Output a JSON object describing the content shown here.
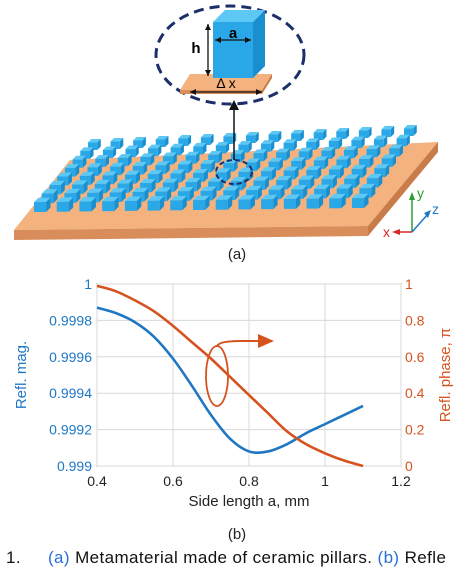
{
  "figure_a": {
    "labels": {
      "side": "a",
      "height": "h",
      "spacing": "Δ x",
      "axis_x": "x",
      "axis_y": "y",
      "axis_z": "z"
    },
    "caption_label": "(a)",
    "colors": {
      "pillar": "#2aa7e6",
      "pillar_top": "#5ec8f5",
      "pillar_side": "#1a8fd0",
      "substrate": "#f4b27e",
      "substrate_dark": "#d98d5a",
      "circle": "#1c2f6b"
    }
  },
  "figure_b": {
    "caption_label": "(b)",
    "annotation": "arrow from magnitude curve to right axis"
  },
  "chart_data": {
    "type": "line",
    "title": "",
    "xlabel": "Side length a, mm",
    "ylabel_left": "Refl. mag.",
    "ylabel_right": "Refl. phase, π",
    "xlim": [
      0.4,
      1.2
    ],
    "ylim_left": [
      0.999,
      1.0
    ],
    "ylim_right": [
      0,
      1
    ],
    "x_ticks": [
      "0.4",
      "0.6",
      "0.8",
      "1",
      "1.2"
    ],
    "y_ticks_left": [
      "0.999",
      "0.9992",
      "0.9994",
      "0.9996",
      "0.9998",
      "1"
    ],
    "y_ticks_right": [
      "0",
      "0.2",
      "0.4",
      "0.6",
      "0.8",
      "1"
    ],
    "grid": true,
    "series": [
      {
        "axis": "left",
        "color": "#1f77c4",
        "x": [
          0.4,
          0.45,
          0.5,
          0.55,
          0.6,
          0.65,
          0.7,
          0.75,
          0.8,
          0.85,
          0.9,
          0.95,
          1.0,
          1.05,
          1.1
        ],
        "y": [
          0.99987,
          0.99984,
          0.99979,
          0.99971,
          0.99959,
          0.99944,
          0.99928,
          0.99915,
          0.99908,
          0.99908,
          0.99912,
          0.99918,
          0.99923,
          0.99928,
          0.99933
        ]
      },
      {
        "axis": "right",
        "color": "#d6531f",
        "x": [
          0.4,
          0.45,
          0.5,
          0.55,
          0.6,
          0.65,
          0.7,
          0.75,
          0.8,
          0.85,
          0.9,
          0.95,
          1.0,
          1.05,
          1.1
        ],
        "y": [
          0.99,
          0.96,
          0.91,
          0.85,
          0.77,
          0.68,
          0.59,
          0.49,
          0.39,
          0.29,
          0.19,
          0.12,
          0.07,
          0.03,
          0.0
        ]
      }
    ]
  },
  "caption": {
    "number": "1.",
    "part_a": "(a)",
    "text_a": " Metamaterial made of ceramic pillars. ",
    "part_b": "(b)",
    "text_b": " Refle"
  }
}
